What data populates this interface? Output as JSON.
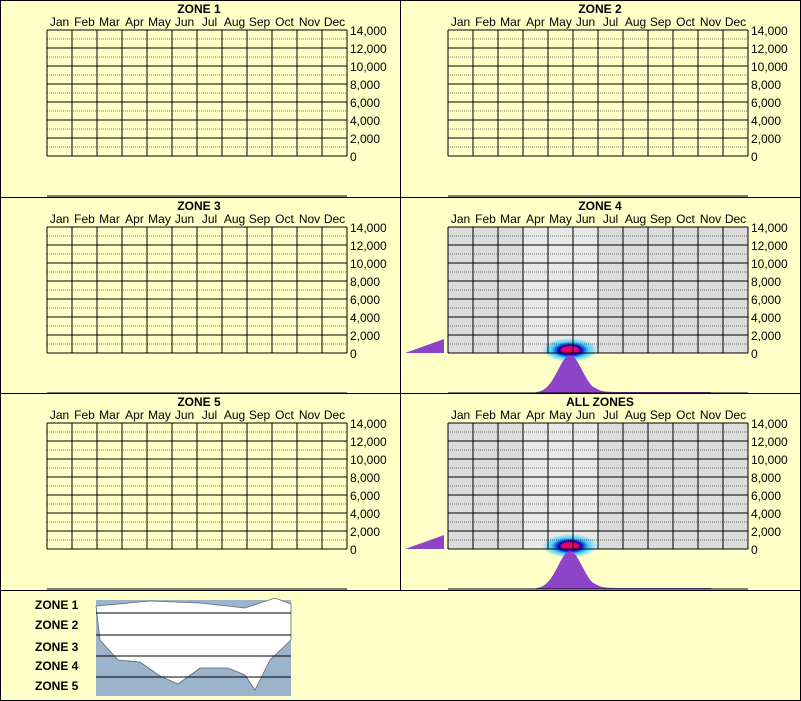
{
  "months": [
    "Jan",
    "Feb",
    "Mar",
    "Apr",
    "May",
    "Jun",
    "Jul",
    "Aug",
    "Sep",
    "Oct",
    "Nov",
    "Dec"
  ],
  "y_ticks": [
    "14,000",
    "12,000",
    "10,000",
    "8,000",
    "6,000",
    "4,000",
    "2,000",
    "0"
  ],
  "colors": {
    "background": "#ffffc8",
    "grid": "#000000",
    "data_fill": "#8e44c8",
    "heat_core": "#e8006a",
    "heat_mid": "#0000c0",
    "heat_outer": "#40d0ff",
    "shade": "#dcdcdc",
    "map_water": "#9ab4cc",
    "map_land": "#ffffff"
  },
  "chart_data": [
    {
      "type": "heatmap",
      "title": "ZONE 1",
      "categories": [
        "Jan",
        "Feb",
        "Mar",
        "Apr",
        "May",
        "Jun",
        "Jul",
        "Aug",
        "Sep",
        "Oct",
        "Nov",
        "Dec"
      ],
      "ylim": [
        0,
        14000
      ],
      "grid": true,
      "has_data": false
    },
    {
      "type": "heatmap",
      "title": "ZONE 2",
      "categories": [
        "Jan",
        "Feb",
        "Mar",
        "Apr",
        "May",
        "Jun",
        "Jul",
        "Aug",
        "Sep",
        "Oct",
        "Nov",
        "Dec"
      ],
      "ylim": [
        0,
        14000
      ],
      "grid": true,
      "has_data": false
    },
    {
      "type": "heatmap",
      "title": "ZONE 3",
      "categories": [
        "Jan",
        "Feb",
        "Mar",
        "Apr",
        "May",
        "Jun",
        "Jul",
        "Aug",
        "Sep",
        "Oct",
        "Nov",
        "Dec"
      ],
      "ylim": [
        0,
        14000
      ],
      "grid": true,
      "has_data": false
    },
    {
      "type": "heatmap",
      "title": "ZONE 4",
      "categories": [
        "Jan",
        "Feb",
        "Mar",
        "Apr",
        "May",
        "Jun",
        "Jul",
        "Aug",
        "Sep",
        "Oct",
        "Nov",
        "Dec"
      ],
      "ylim": [
        0,
        14000
      ],
      "grid": true,
      "has_data": true,
      "active_months": [
        "Apr",
        "May",
        "Jun"
      ],
      "peak": {
        "month": "May",
        "elevation": 0
      }
    },
    {
      "type": "heatmap",
      "title": "ZONE 5",
      "categories": [
        "Jan",
        "Feb",
        "Mar",
        "Apr",
        "May",
        "Jun",
        "Jul",
        "Aug",
        "Sep",
        "Oct",
        "Nov",
        "Dec"
      ],
      "ylim": [
        0,
        14000
      ],
      "grid": true,
      "has_data": false
    },
    {
      "type": "heatmap",
      "title": "ALL ZONES",
      "categories": [
        "Jan",
        "Feb",
        "Mar",
        "Apr",
        "May",
        "Jun",
        "Jul",
        "Aug",
        "Sep",
        "Oct",
        "Nov",
        "Dec"
      ],
      "ylim": [
        0,
        14000
      ],
      "grid": true,
      "has_data": true,
      "active_months": [
        "Apr",
        "May",
        "Jun"
      ],
      "peak": {
        "month": "May",
        "elevation": 0
      }
    }
  ],
  "legend": {
    "zones": [
      "ZONE 1",
      "ZONE 2",
      "ZONE 3",
      "ZONE 4",
      "ZONE 5"
    ]
  }
}
